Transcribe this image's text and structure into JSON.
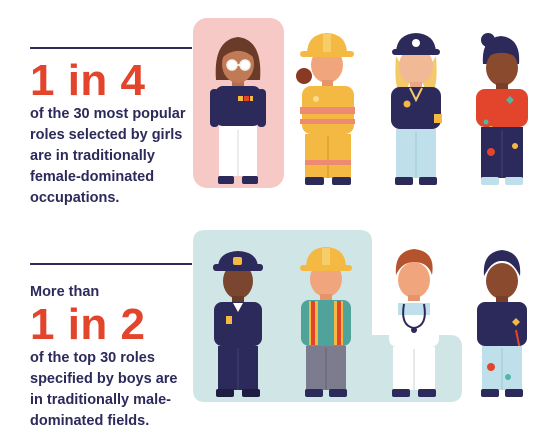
{
  "section_girls": {
    "stat": "1 in 4",
    "lines": [
      "of the 30 most popular",
      "roles selected by girls",
      "are in traditionally",
      "female-dominated",
      "occupations."
    ]
  },
  "section_boys": {
    "lead": "More than",
    "stat": "1 in 2",
    "lines": [
      "of the top 30 roles",
      "specified by boys are",
      "in traditionally male-",
      "dominated fields."
    ]
  },
  "colors": {
    "navy": "#2c2a5a",
    "accent_red": "#e2452c",
    "pink_panel": "#f7c9c6",
    "teal_panel": "#cfe5e6"
  },
  "figures": {
    "girls": [
      "businesswoman-figure",
      "firefighter-figure",
      "miner-figure",
      "artist-figure"
    ],
    "boys": [
      "police-officer-figure",
      "construction-worker-figure",
      "doctor-figure",
      "painter-figure"
    ]
  }
}
